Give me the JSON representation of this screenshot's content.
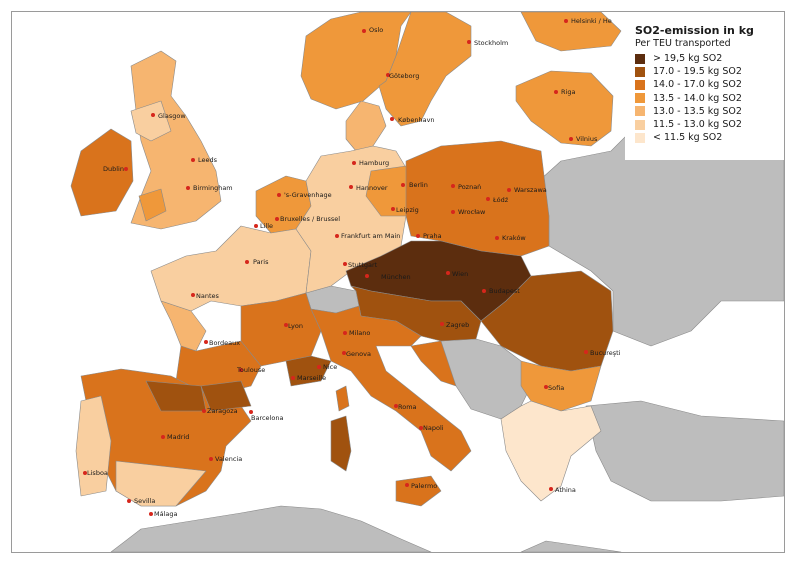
{
  "legend": {
    "title": "SO2-emission in kg",
    "subtitle": "Per TEU transported",
    "classes": [
      {
        "label": "> 19,5 kg SO2",
        "color": "#5c2d0e"
      },
      {
        "label": "17.0 - 19.5 kg SO2",
        "color": "#a0520f"
      },
      {
        "label": "14.0 - 17.0 kg SO2",
        "color": "#d9731c"
      },
      {
        "label": "13.5 - 14.0 kg SO2",
        "color": "#ef983a"
      },
      {
        "label": "13.0 - 13.5 kg SO2",
        "color": "#f6b570"
      },
      {
        "label": "11.5 - 13.0 kg SO2",
        "color": "#f9cfa0"
      },
      {
        "label": "< 11.5 kg SO2",
        "color": "#fde6cc"
      }
    ]
  },
  "colors": {
    "sea": "#ffffff",
    "non_covered_land": "#bdbdbd",
    "borders": "#8a8a8a",
    "city_dot": "#d6261c"
  },
  "cities": {
    "oslo": "Oslo",
    "stockholm": "Stockholm",
    "helsinki": "Helsinki / He",
    "goteborg": "Göteborg",
    "riga": "Riga",
    "kobenhavn": "København",
    "vilnius": "Vilnius",
    "glasgow": "Glasgow",
    "dublin": "Dublin",
    "leeds": "Leeds",
    "birmingham": "Birmingham",
    "hamburg": "Hamburg",
    "sgravenhage": "'s-Gravenhage",
    "hannover": "Hannover",
    "berlin": "Berlin",
    "poznan": "Poznań",
    "warszawa": "Warszawa",
    "lodz": "Łódź",
    "bruxelles": "Bruxelles / Brussel",
    "leipzig": "Leipzig",
    "wroclaw": "Wrocław",
    "lille": "Lille",
    "frankfurt": "Frankfurt am Main",
    "praha": "Praha",
    "krakow": "Kraków",
    "paris": "Paris",
    "stuttgart": "Stuttgart",
    "munchen": "München",
    "wien": "Wien",
    "budapest": "Budapest",
    "nantes": "Nantes",
    "lyon": "Lyon",
    "milano": "Milano",
    "zagreb": "Zagreb",
    "bordeaux": "Bordeaux",
    "genova": "Genova",
    "bucuresti": "Bucureşti",
    "toulouse": "Toulouse",
    "nice": "Nice",
    "marseille": "Marseille",
    "sofia": "Sofia",
    "zaragoza": "Zaragoza",
    "barcelona": "Barcelona",
    "roma": "Roma",
    "madrid": "Madrid",
    "napoli": "Napoli",
    "valencia": "Valencia",
    "lisboa": "Lisboa",
    "sevilla": "Sevilla",
    "malaga": "Málaga",
    "palermo": "Palermo",
    "athina": "Athina"
  }
}
